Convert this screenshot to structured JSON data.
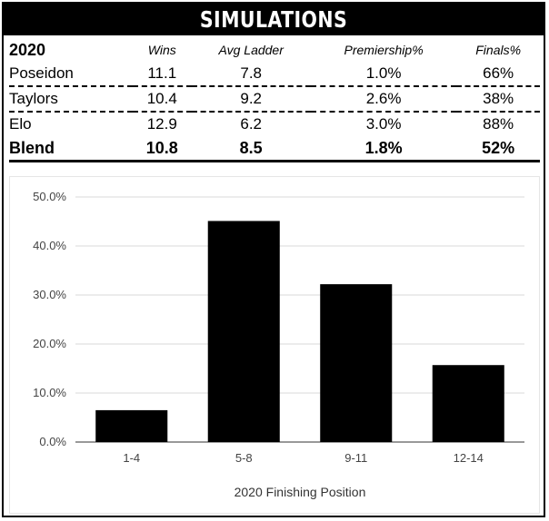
{
  "title": "SIMULATIONS",
  "table": {
    "year": "2020",
    "headers": [
      "Wins",
      "Avg Ladder",
      "Premiership%",
      "Finals%"
    ],
    "rows": [
      {
        "team": "Poseidon",
        "wins": "11.1",
        "avg_ladder": "7.8",
        "premiership": "1.0%",
        "finals": "66%"
      },
      {
        "team": "Taylors",
        "wins": "10.4",
        "avg_ladder": "9.2",
        "premiership": "2.6%",
        "finals": "38%"
      },
      {
        "team": "Elo",
        "wins": "12.9",
        "avg_ladder": "6.2",
        "premiership": "3.0%",
        "finals": "88%"
      }
    ],
    "blend": {
      "team": "Blend",
      "wins": "10.8",
      "avg_ladder": "8.5",
      "premiership": "1.8%",
      "finals": "52%"
    }
  },
  "chart_data": {
    "type": "bar",
    "categories": [
      "1-4",
      "5-8",
      "9-11",
      "12-14"
    ],
    "values": [
      6.5,
      45.1,
      32.2,
      15.7
    ],
    "xlabel": "2020 Finishing Position",
    "ylabel": "",
    "ylim": [
      0,
      50
    ],
    "yticks": [
      "0.0%",
      "10.0%",
      "20.0%",
      "30.0%",
      "40.0%",
      "50.0%"
    ],
    "grid": true,
    "bar_color": "#000000",
    "grid_color": "#d9d9d9"
  }
}
